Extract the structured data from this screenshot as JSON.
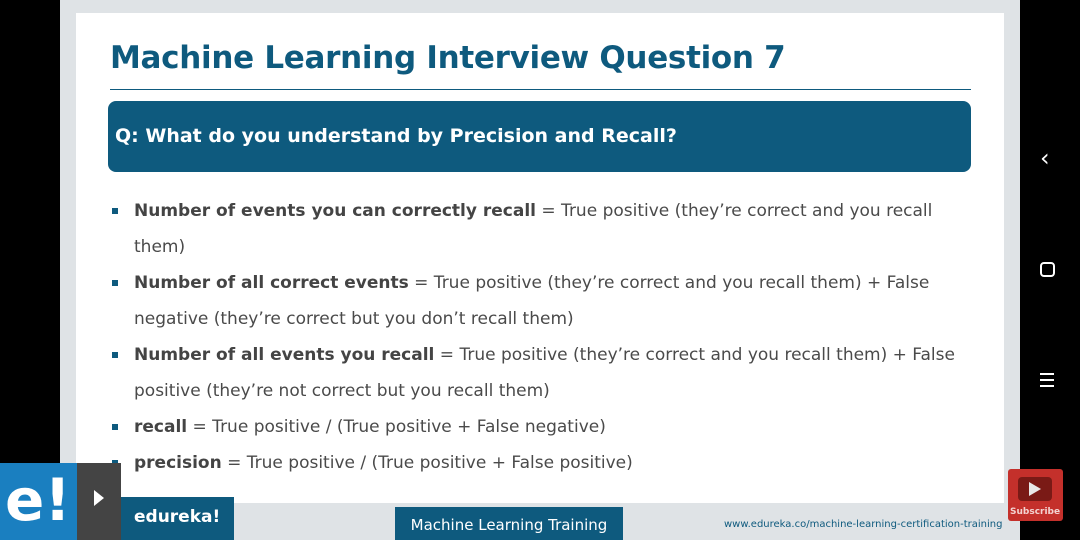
{
  "slide": {
    "title": "Machine Learning Interview Question 7",
    "question": "Q: What do you understand by Precision and Recall?",
    "bullets": [
      {
        "term": "Number of events you can correctly recall",
        "text": " = True positive (they’re correct and you recall them)"
      },
      {
        "term": "Number of all correct events",
        "text": " = True positive (they’re correct and you recall them) + False negative (they’re correct but you don’t recall them)"
      },
      {
        "term": "Number of all events you recall",
        "text": " = True positive (they’re correct and you recall them) + False positive (they’re not correct but you recall them)"
      },
      {
        "term": "recall",
        "text": " = True positive / (True positive + False negative)"
      },
      {
        "term": "precision",
        "text": " = True positive / (True positive + False positive)"
      }
    ]
  },
  "footer": {
    "logo": "e!",
    "brand": "edureka!",
    "course": "Machine Learning Training",
    "url": "www.edureka.co/machine-learning-certification-training"
  },
  "subscribe": {
    "label": "Subscribe"
  },
  "nav": {
    "back_icon": "chevron-left-icon",
    "home_icon": "square-icon",
    "menu_icon": "menu-icon"
  },
  "colors": {
    "accent": "#0e5a7e",
    "logo_blue": "#1a7fc0",
    "subscribe_red": "#c4302b"
  }
}
